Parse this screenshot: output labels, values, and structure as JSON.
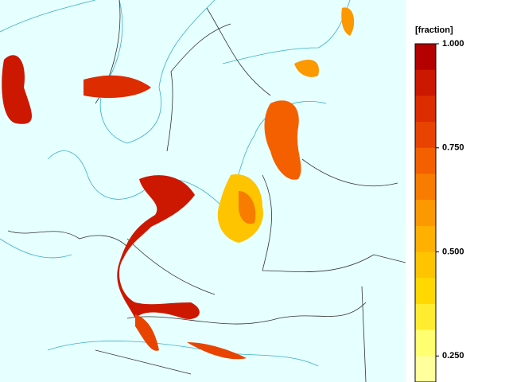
{
  "chart_data": {
    "type": "colorbar",
    "label": "[fraction]",
    "clim": [
      0.1875,
      1.0
    ],
    "colors": [
      "#b40000",
      "#cc1800",
      "#dc2c00",
      "#e84400",
      "#f46000",
      "#f87c00",
      "#fc9800",
      "#ffb000",
      "#ffc400",
      "#ffd800",
      "#ffec30",
      "#ffff70",
      "#ffff9c"
    ],
    "ticks": [
      {
        "value": 1.0,
        "label": "1.000"
      },
      {
        "value": 0.75,
        "label": "0.750"
      },
      {
        "value": 0.5,
        "label": "0.500"
      },
      {
        "value": 0.25,
        "label": "0.250"
      }
    ]
  }
}
